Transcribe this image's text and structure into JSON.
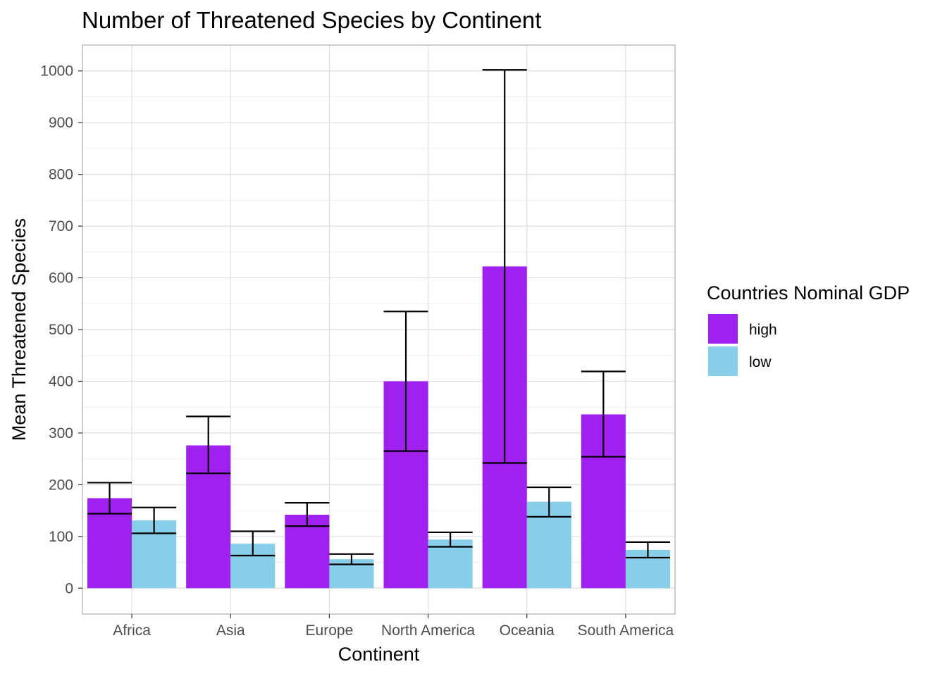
{
  "chart_data": {
    "type": "bar",
    "title": "Number of Threatened Species by Continent",
    "xlabel": "Continent",
    "ylabel": "Mean Threatened Species",
    "categories": [
      "Africa",
      "Asia",
      "Europe",
      "North America",
      "Oceania",
      "South America"
    ],
    "ylim": [
      -50,
      1050
    ],
    "yticks": [
      0,
      100,
      200,
      300,
      400,
      500,
      600,
      700,
      800,
      900,
      1000
    ],
    "grid": true,
    "legend": {
      "title": "Countries Nominal GDP",
      "placement": "right"
    },
    "series": [
      {
        "name": "high",
        "color": "#a020f0",
        "values": [
          174,
          276,
          142,
          400,
          622,
          336
        ],
        "error_low": [
          144,
          222,
          120,
          265,
          242,
          254
        ],
        "error_high": [
          204,
          332,
          165,
          535,
          1002,
          419
        ]
      },
      {
        "name": "low",
        "color": "#87ceeb",
        "values": [
          131,
          86,
          56,
          94,
          167,
          74
        ],
        "error_low": [
          106,
          63,
          46,
          80,
          138,
          59
        ],
        "error_high": [
          156,
          110,
          66,
          108,
          195,
          89
        ]
      }
    ]
  }
}
